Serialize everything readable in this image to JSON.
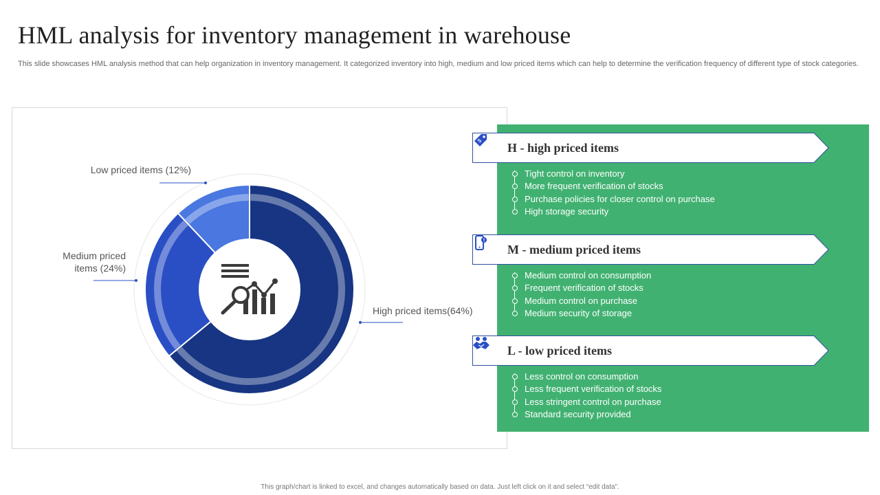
{
  "title": "HML analysis for inventory management in warehouse",
  "subtitle": "This slide showcases HML analysis method that can help organization in inventory management. It categorized inventory into high, medium and low priced items which can help to determine the verification frequency of different type of stock categories.",
  "footer": "This graph/chart is linked to excel, and changes automatically based on data. Just left click on it and select “edit data”.",
  "colors": {
    "high": "#173582",
    "medium": "#2a4fc5",
    "low": "#4a77e0",
    "panel": "#41b171",
    "banner_border": "#2f4f9f"
  },
  "chart_data": {
    "type": "pie",
    "style": "donut",
    "center_icon": "analytics-magnifier-icon",
    "slices": [
      {
        "name": "High priced items",
        "value": 64,
        "label": "High priced items(64%)"
      },
      {
        "name": "Medium priced items",
        "value": 24,
        "label_lines": [
          "Medium priced",
          "items (24%)"
        ]
      },
      {
        "name": "Low priced items",
        "value": 12,
        "label": "Low priced items (12%)"
      }
    ]
  },
  "categories": [
    {
      "icon": "price-tag-icon",
      "title": "H - high priced items",
      "bullets": [
        "Tight control on inventory",
        "More frequent verification  of stocks",
        "Purchase policies for closer control on purchase",
        "High storage security"
      ]
    },
    {
      "icon": "mobile-alert-icon",
      "title": "M - medium priced items",
      "bullets": [
        "Medium control on consumption",
        "Frequent verification  of stocks",
        "Medium control on purchase",
        "Medium security of storage"
      ]
    },
    {
      "icon": "handshake-icon",
      "title": "L - low priced items",
      "bullets": [
        "Less control on consumption",
        "Less frequent verification  of stocks",
        "Less stringent control on purchase",
        "Standard security provided"
      ]
    }
  ]
}
